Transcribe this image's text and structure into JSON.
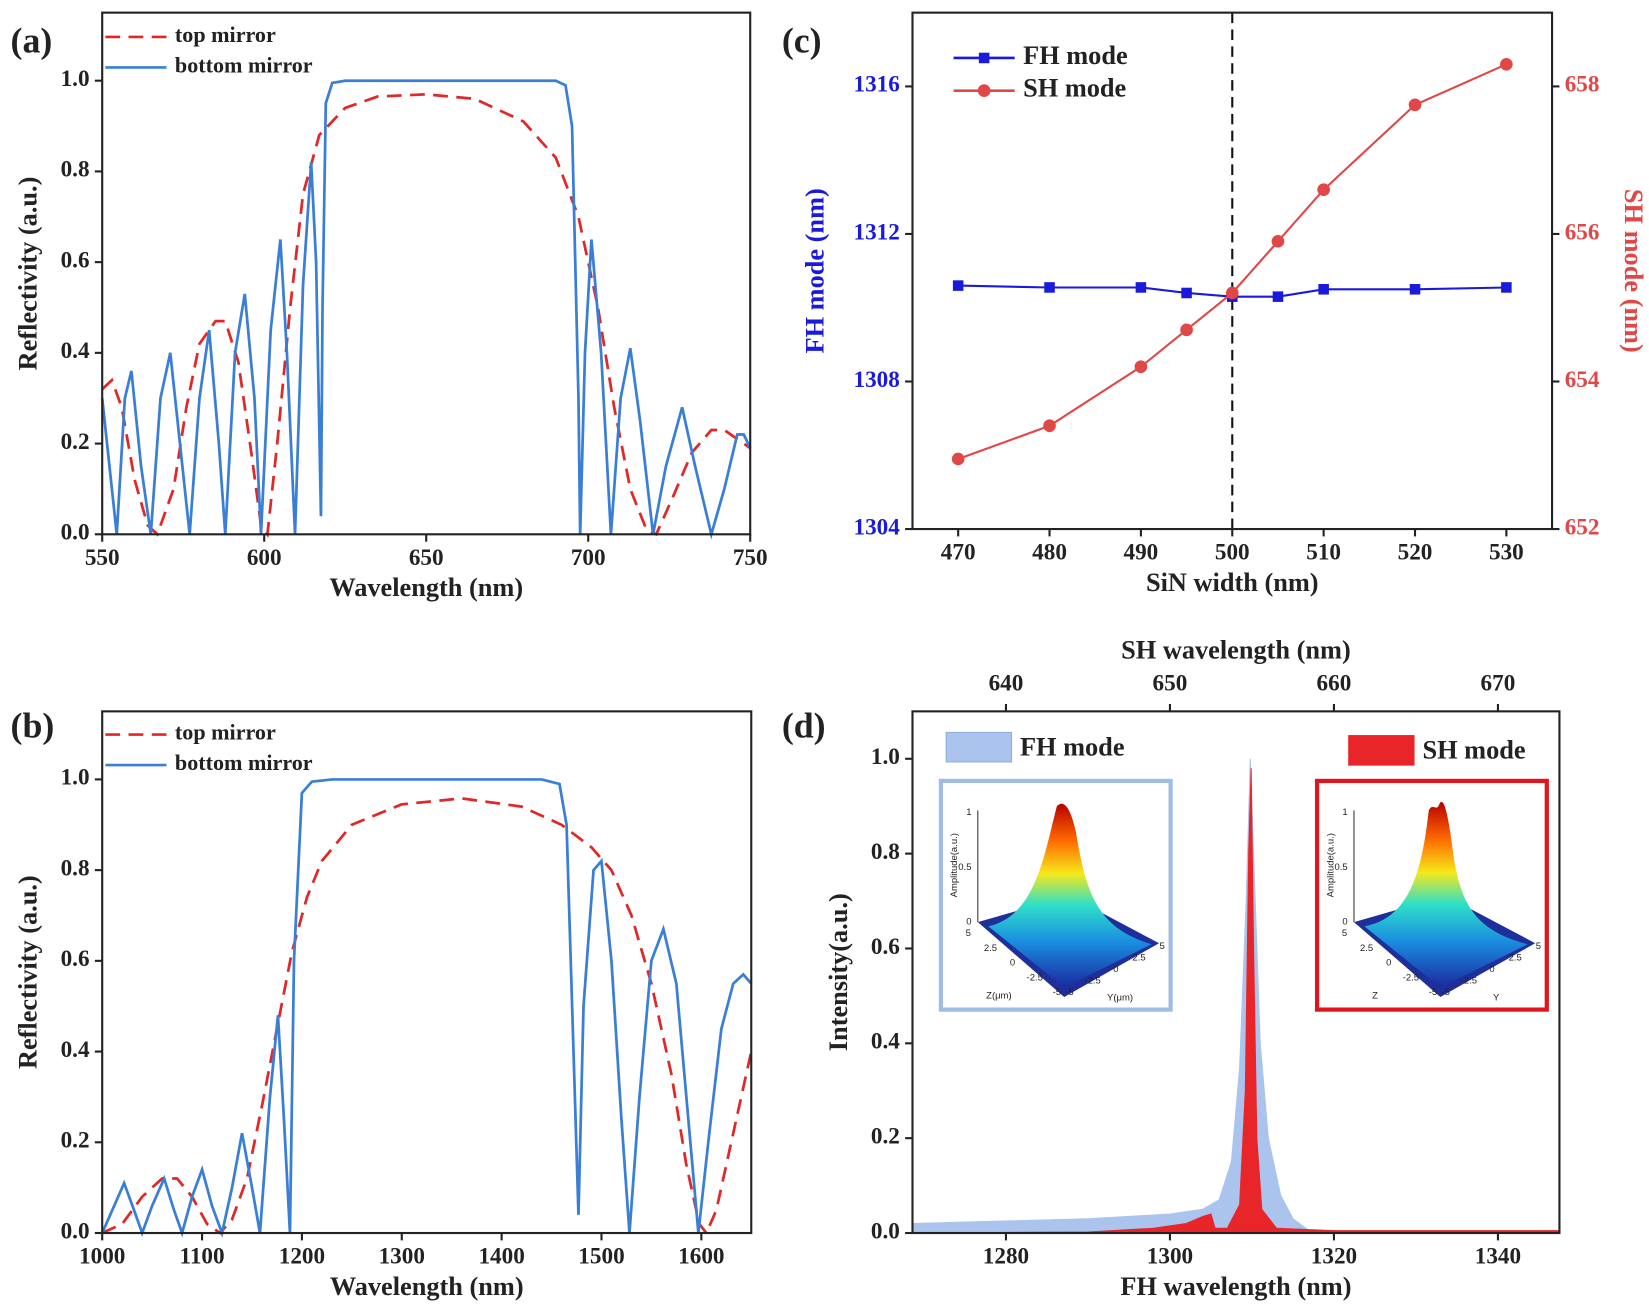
{
  "chart_data": [
    {
      "type": "line",
      "panel_label": "(a)",
      "xlabel": "Wavelength (nm)",
      "ylabel": "Reflectivity (a.u.)",
      "xlim": [
        550,
        750
      ],
      "xticks": [
        550,
        600,
        650,
        700,
        750
      ],
      "ylim": [
        0,
        1.15
      ],
      "yticks": [
        {
          "value": 0,
          "label": "0.0"
        },
        {
          "value": 0.2,
          "label": "0.2"
        },
        {
          "value": 0.4,
          "label": "0.4"
        },
        {
          "value": 0.6,
          "label": "0.6"
        },
        {
          "value": 0.8,
          "label": "0.8"
        },
        {
          "value": 1.0,
          "label": "1.0"
        }
      ],
      "series": [
        {
          "name": "top mirror",
          "color": "#e02828",
          "dash": true,
          "x": [
            550,
            553,
            556,
            560,
            564,
            567,
            572,
            576,
            580,
            585,
            588,
            592,
            596,
            599,
            601,
            604,
            608,
            612,
            617,
            625,
            635,
            650,
            665,
            680,
            690,
            697,
            703,
            708,
            713,
            718,
            721,
            726,
            732,
            738,
            742,
            746,
            750
          ],
          "values": [
            0.32,
            0.34,
            0.28,
            0.12,
            0.02,
            0,
            0.1,
            0.28,
            0.42,
            0.47,
            0.47,
            0.38,
            0.18,
            0.02,
            0,
            0.2,
            0.5,
            0.75,
            0.88,
            0.94,
            0.965,
            0.97,
            0.96,
            0.91,
            0.83,
            0.7,
            0.5,
            0.28,
            0.1,
            0.01,
            0,
            0.08,
            0.18,
            0.23,
            0.23,
            0.21,
            0.19
          ]
        },
        {
          "name": "bottom mirror",
          "color": "#3a7fd5",
          "dash": false,
          "x": [
            550,
            553,
            554.5,
            557,
            559,
            562,
            565,
            568,
            571,
            574,
            577,
            580,
            583,
            586,
            588,
            591,
            594,
            597,
            599,
            602,
            605,
            607,
            609.5,
            612,
            614.5,
            616,
            617.5,
            618,
            619,
            621,
            625,
            690,
            693,
            695,
            697,
            697.5,
            699,
            701,
            704,
            707,
            710,
            713,
            716,
            720,
            724,
            729,
            733,
            738,
            742,
            746,
            748,
            750
          ],
          "values": [
            0.3,
            0.1,
            0,
            0.3,
            0.36,
            0.15,
            0,
            0.3,
            0.4,
            0.2,
            0,
            0.3,
            0.45,
            0.2,
            0,
            0.4,
            0.53,
            0.3,
            0,
            0.45,
            0.65,
            0.4,
            0,
            0.55,
            0.82,
            0.6,
            0.04,
            0.5,
            0.95,
            0.995,
            1.0,
            1.0,
            0.99,
            0.9,
            0.3,
            0,
            0.4,
            0.65,
            0.4,
            0,
            0.3,
            0.41,
            0.25,
            0,
            0.15,
            0.28,
            0.15,
            0,
            0.1,
            0.22,
            0.22,
            0.19
          ]
        }
      ]
    },
    {
      "type": "line",
      "panel_label": "(b)",
      "xlabel": "Wavelength (nm)",
      "ylabel": "Reflectivity (a.u.)",
      "xlim": [
        1000,
        1650
      ],
      "xticks": [
        1000,
        1100,
        1200,
        1300,
        1400,
        1500,
        1600
      ],
      "ylim": [
        0,
        1.15
      ],
      "yticks": [
        {
          "value": 0,
          "label": "0.0"
        },
        {
          "value": 0.2,
          "label": "0.2"
        },
        {
          "value": 0.4,
          "label": "0.4"
        },
        {
          "value": 0.6,
          "label": "0.6"
        },
        {
          "value": 0.8,
          "label": "0.8"
        },
        {
          "value": 1.0,
          "label": "1.0"
        }
      ],
      "series": [
        {
          "name": "top mirror",
          "color": "#e02828",
          "dash": true,
          "x": [
            1000,
            1020,
            1040,
            1060,
            1075,
            1090,
            1105,
            1118,
            1130,
            1145,
            1160,
            1175,
            1190,
            1205,
            1220,
            1250,
            1300,
            1360,
            1420,
            1460,
            1490,
            1510,
            1530,
            1550,
            1570,
            1585,
            1598,
            1605,
            1615,
            1630,
            1650
          ],
          "values": [
            0,
            0.02,
            0.08,
            0.12,
            0.12,
            0.08,
            0.02,
            0,
            0.03,
            0.12,
            0.28,
            0.45,
            0.62,
            0.74,
            0.82,
            0.9,
            0.945,
            0.958,
            0.94,
            0.9,
            0.85,
            0.8,
            0.7,
            0.55,
            0.35,
            0.15,
            0.02,
            0,
            0.05,
            0.2,
            0.4
          ]
        },
        {
          "name": "bottom mirror",
          "color": "#3a7fd5",
          "dash": false,
          "x": [
            1000,
            1010,
            1022,
            1032,
            1040,
            1050,
            1062,
            1072,
            1080,
            1090,
            1100,
            1110,
            1120,
            1130,
            1140,
            1150,
            1158,
            1168,
            1176,
            1182,
            1188,
            1192,
            1200,
            1210,
            1230,
            1440,
            1458,
            1465,
            1472,
            1477,
            1482,
            1492,
            1500,
            1510,
            1520,
            1528,
            1538,
            1550,
            1562,
            1575,
            1587,
            1597,
            1607,
            1620,
            1632,
            1642,
            1650
          ],
          "values": [
            0,
            0.05,
            0.11,
            0.05,
            0,
            0.06,
            0.12,
            0.05,
            0,
            0.08,
            0.14,
            0.06,
            0,
            0.1,
            0.22,
            0.1,
            0,
            0.3,
            0.48,
            0.25,
            0,
            0.6,
            0.97,
            0.995,
            1.0,
            1.0,
            0.99,
            0.9,
            0.4,
            0.04,
            0.5,
            0.8,
            0.82,
            0.6,
            0.25,
            0,
            0.3,
            0.6,
            0.67,
            0.55,
            0.25,
            0,
            0.2,
            0.45,
            0.55,
            0.57,
            0.55
          ]
        }
      ]
    },
    {
      "type": "line",
      "panel_label": "(c)",
      "xlabel": "SiN width (nm)",
      "ylabel": "FH mode (nm)",
      "y2label": "SH mode (nm)",
      "x": [
        470,
        480,
        490,
        495,
        500,
        505,
        510,
        520,
        530
      ],
      "xlim": [
        465,
        535
      ],
      "xticks": [
        470,
        480,
        490,
        500,
        510,
        520,
        530
      ],
      "ylim": [
        1304,
        1318
      ],
      "yticks": [
        1304,
        1308,
        1312,
        1316
      ],
      "y2lim": [
        652,
        659
      ],
      "y2ticks": [
        652,
        654,
        656,
        658
      ],
      "reference_line": 500,
      "series": [
        {
          "name": "FH mode",
          "color": "#1a1adb",
          "marker": "square",
          "values": [
            1310.6,
            1310.55,
            1310.55,
            1310.4,
            1310.3,
            1310.3,
            1310.5,
            1310.5,
            1310.55
          ]
        },
        {
          "name": "SH mode",
          "color": "#e04848",
          "marker": "circle",
          "axis": "y2",
          "values": [
            652.95,
            653.4,
            654.2,
            654.7,
            655.2,
            655.9,
            656.6,
            657.75,
            658.3
          ]
        }
      ]
    },
    {
      "type": "area",
      "panel_label": "(d)",
      "xlabel": "FH wavelength (nm)",
      "ylabel": "Intensity(a.u.)",
      "x2label": "SH wavelength (nm)",
      "xlim": [
        1268.6,
        1347.5
      ],
      "xticks": [
        1280,
        1300,
        1320,
        1340
      ],
      "x2lim": [
        634.3,
        673.75
      ],
      "x2ticks": [
        640,
        650,
        660,
        670
      ],
      "ylim": [
        0,
        1.1
      ],
      "yticks": [
        {
          "value": 0,
          "label": "0.0"
        },
        {
          "value": 0.2,
          "label": "0.2"
        },
        {
          "value": 0.4,
          "label": "0.4"
        },
        {
          "value": 0.6,
          "label": "0.6"
        },
        {
          "value": 0.8,
          "label": "0.8"
        },
        {
          "value": 1.0,
          "label": "1.0"
        }
      ],
      "series": [
        {
          "name": "FH mode",
          "color": "#aac4ee",
          "x": [
            1268.6,
            1290,
            1300,
            1304,
            1306,
            1307.5,
            1308.5,
            1309.3,
            1309.8,
            1310.3,
            1311,
            1312,
            1313.5,
            1315,
            1317,
            1320,
            1347.5
          ],
          "values": [
            0.02,
            0.03,
            0.04,
            0.05,
            0.07,
            0.15,
            0.35,
            0.7,
            1.0,
            0.75,
            0.4,
            0.2,
            0.08,
            0.03,
            0.005,
            0,
            0
          ]
        },
        {
          "name": "SH mode",
          "color": "#e8262a",
          "x": [
            1268.6,
            1290,
            1298,
            1302,
            1304,
            1305,
            1305.5,
            1307,
            1308.5,
            1309.2,
            1309.6,
            1309.9,
            1310.2,
            1310.6,
            1311.2,
            1313,
            1320,
            1347.5
          ],
          "values": [
            0,
            0.002,
            0.01,
            0.02,
            0.035,
            0.04,
            0.01,
            0.01,
            0.06,
            0.3,
            0.8,
            0.98,
            0.6,
            0.2,
            0.05,
            0.01,
            0.005,
            0.005
          ]
        }
      ],
      "insets": [
        {
          "border_color": "#9ebce6",
          "z_label": "Amplitude(a.u.)",
          "z_ticks": [
            0,
            0.5,
            1
          ],
          "x_label": "Z(μm)",
          "y_label": "Y(μm)",
          "x_ticks": [
            5,
            2.5,
            0,
            -2.5,
            -5
          ],
          "y_ticks": [
            -5,
            -2.5,
            0,
            2.5,
            5
          ]
        },
        {
          "border_color": "#e0141c",
          "z_label": "Amplitude(a.u.)",
          "z_ticks": [
            0,
            0.5,
            1
          ],
          "x_label": "Z",
          "y_label": "Y",
          "x_ticks": [
            5,
            2.5,
            0,
            -2.5,
            -5
          ],
          "y_ticks": [
            -5,
            -2.5,
            0,
            2.5,
            5
          ]
        }
      ]
    }
  ]
}
